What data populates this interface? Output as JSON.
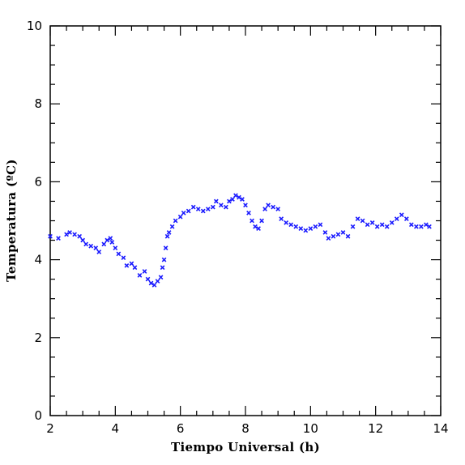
{
  "chart_data": {
    "type": "scatter",
    "title": "",
    "xlabel": "Tiempo Universal (h)",
    "ylabel": "Temperatura (ºC)",
    "xlim": [
      2,
      14
    ],
    "ylim": [
      0,
      10
    ],
    "xticks": [
      2,
      4,
      6,
      8,
      10,
      12,
      14
    ],
    "yticks": [
      0,
      2,
      4,
      6,
      8,
      10
    ],
    "marker": "x",
    "color": "#1a1aff",
    "grid": false,
    "series": [
      {
        "x": [
          2.0,
          2.25,
          2.5,
          2.6,
          2.75,
          2.9,
          3.0,
          3.1,
          3.25,
          3.4,
          3.5,
          3.65,
          3.75,
          3.85,
          3.9,
          4.0,
          4.1,
          4.25,
          4.35,
          4.5,
          4.6,
          4.75,
          4.9,
          5.0,
          5.1,
          5.2,
          5.3,
          5.4,
          5.45,
          5.5,
          5.55,
          5.6,
          5.65,
          5.75,
          5.85,
          6.0,
          6.1,
          6.25,
          6.4,
          6.55,
          6.7,
          6.85,
          7.0,
          7.1,
          7.25,
          7.4,
          7.5,
          7.6,
          7.7,
          7.8,
          7.9,
          8.0,
          8.1,
          8.2,
          8.3,
          8.4,
          8.5,
          8.6,
          8.7,
          8.85,
          9.0,
          9.1,
          9.25,
          9.4,
          9.55,
          9.7,
          9.85,
          10.0,
          10.15,
          10.3,
          10.45,
          10.55,
          10.7,
          10.85,
          11.0,
          11.15,
          11.3,
          11.45,
          11.6,
          11.75,
          11.9,
          12.05,
          12.2,
          12.35,
          12.5,
          12.65,
          12.8,
          12.95,
          13.1,
          13.25,
          13.4,
          13.55,
          13.65
        ],
        "y": [
          4.6,
          4.55,
          4.65,
          4.7,
          4.65,
          4.6,
          4.5,
          4.4,
          4.35,
          4.3,
          4.2,
          4.4,
          4.5,
          4.55,
          4.45,
          4.3,
          4.15,
          4.05,
          3.85,
          3.9,
          3.8,
          3.6,
          3.7,
          3.5,
          3.4,
          3.35,
          3.45,
          3.55,
          3.8,
          4.0,
          4.3,
          4.6,
          4.7,
          4.85,
          5.0,
          5.1,
          5.2,
          5.25,
          5.35,
          5.3,
          5.25,
          5.3,
          5.35,
          5.5,
          5.4,
          5.35,
          5.5,
          5.55,
          5.65,
          5.6,
          5.55,
          5.4,
          5.2,
          5.0,
          4.85,
          4.8,
          5.0,
          5.3,
          5.4,
          5.35,
          5.3,
          5.05,
          4.95,
          4.9,
          4.85,
          4.8,
          4.75,
          4.8,
          4.85,
          4.9,
          4.7,
          4.55,
          4.6,
          4.65,
          4.7,
          4.6,
          4.85,
          5.05,
          5.0,
          4.9,
          4.95,
          4.85,
          4.9,
          4.85,
          4.95,
          5.05,
          5.15,
          5.05,
          4.9,
          4.85,
          4.85,
          4.9,
          4.85
        ]
      }
    ]
  }
}
